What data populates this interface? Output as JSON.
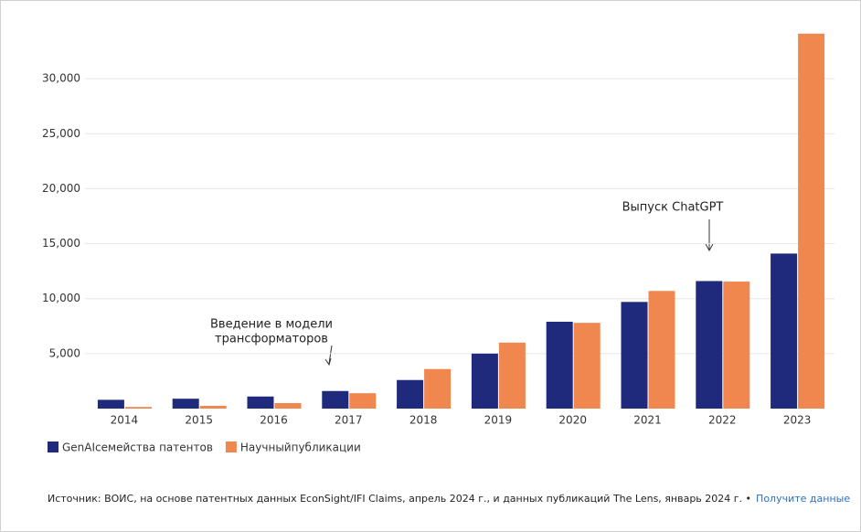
{
  "chart_data": {
    "type": "bar",
    "categories": [
      "2014",
      "2015",
      "2016",
      "2017",
      "2018",
      "2019",
      "2020",
      "2021",
      "2022",
      "2023"
    ],
    "series": [
      {
        "name": "GenAIсемейства патентов",
        "color": "#1f2a7c",
        "values": [
          800,
          900,
          1100,
          1600,
          2600,
          5000,
          7900,
          9700,
          11600,
          14100
        ]
      },
      {
        "name": "Научныйпубликации",
        "color": "#f0874f",
        "values": [
          150,
          250,
          500,
          1400,
          3600,
          6000,
          7800,
          10700,
          11550,
          34100
        ]
      }
    ],
    "ylim": [
      0,
      35000
    ],
    "yticks": [
      {
        "value": 5000,
        "label": "5,000"
      },
      {
        "value": 10000,
        "label": "10,000"
      },
      {
        "value": 15000,
        "label": "15,000"
      },
      {
        "value": 20000,
        "label": "20,000"
      },
      {
        "value": 25000,
        "label": "25,000"
      },
      {
        "value": 30000,
        "label": "30,000"
      }
    ],
    "grid": true,
    "annotations": [
      {
        "lines": [
          "Введение в модели",
          "трансформаторов"
        ]
      },
      {
        "lines": [
          "Выпуск ChatGPT"
        ]
      }
    ],
    "source": "Источник: ВОИС, на основе патентных данных EconSight/IFI Claims, апрель 2024 г., и данных публикаций The Lens, январь 2024 г. •",
    "source_link": "Получите данные"
  }
}
